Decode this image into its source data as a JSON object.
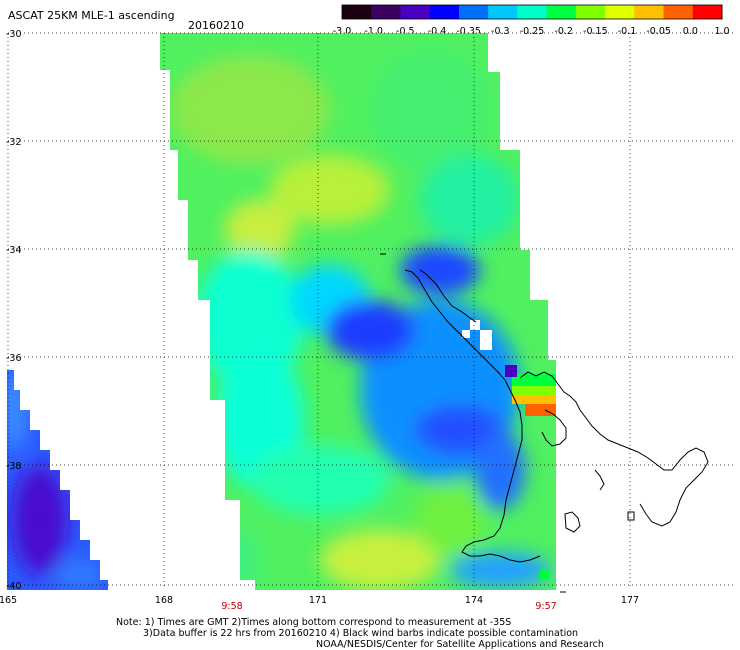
{
  "title": "ASCAT 25KM MLE-1 ascending",
  "date": "20160210",
  "colorbar": {
    "labels": [
      "-3.0",
      "-1.0",
      "-0.5",
      "-0.4",
      "-0.35",
      "-0.3",
      "-0.25",
      "-0.2",
      "-0.15",
      "-0.1",
      "-0.05",
      "0.0",
      "1.0"
    ],
    "colors": [
      "#1a0010",
      "#3b0060",
      "#4a00c0",
      "#0000ff",
      "#0070ff",
      "#00c8ff",
      "#00ffc8",
      "#00ff40",
      "#80ff00",
      "#e0ff00",
      "#ffc000",
      "#ff6000",
      "#ff0000"
    ]
  },
  "axes": {
    "lat_labels": [
      "-30",
      "-32",
      "-34",
      "-36",
      "-38",
      "-40"
    ],
    "lon_labels": [
      "165",
      "168",
      "171",
      "174",
      "177"
    ]
  },
  "swath_times": [
    "9:58",
    "9:57"
  ],
  "notes": [
    "Note: 1) Times are GMT 2)Times along bottom correspond to measurement at -35S",
    "3)Data buffer is 22 hrs from 20160210 4) Black wind barbs indicate possible contamination",
    "NOAA/NESDIS/Center for Satellite Applications and Research"
  ],
  "colors": {
    "time_label": "#c00000",
    "grid": "#000000"
  }
}
